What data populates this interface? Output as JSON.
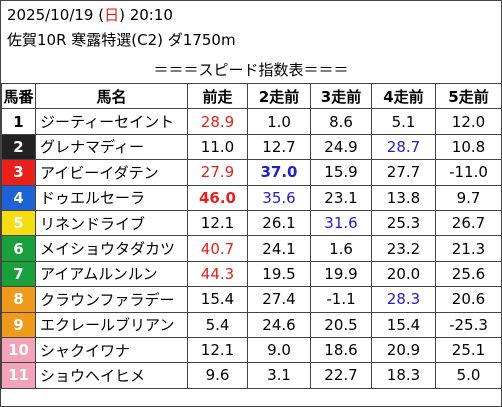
{
  "header": {
    "date_prefix": "2025/10/19 (",
    "weekday": "日",
    "date_suffix": ") 20:10",
    "race": "佐賀10R 寒露特選(C2) ダ1750m"
  },
  "subtitle": "＝＝＝スピード指数表＝＝＝",
  "columns": [
    "馬番",
    "馬名",
    "前走",
    "2走前",
    "3走前",
    "4走前",
    "5走前"
  ],
  "gate_colors": {
    "1": {
      "bg": "#ffffff",
      "fg": "#000000"
    },
    "2": {
      "bg": "#222222",
      "fg": "#ffffff"
    },
    "3": {
      "bg": "#e8211d",
      "fg": "#ffffff"
    },
    "4": {
      "bg": "#1e63d6",
      "fg": "#ffffff"
    },
    "5": {
      "bg": "#f5dd12",
      "fg": "#ffffff"
    },
    "6": {
      "bg": "#19a03a",
      "fg": "#ffffff"
    },
    "7": {
      "bg": "#f09a1b",
      "fg": "#ffffff"
    },
    "8": {
      "bg": "#f3a3b8",
      "fg": "#ffffff"
    }
  },
  "rows": [
    {
      "no": "1",
      "gate": "1",
      "name": "ジーティーセイント",
      "vals": [
        "28.9",
        "1.0",
        "8.6",
        "5.1",
        "12.0"
      ],
      "styles": [
        "red",
        "",
        "",
        "",
        ""
      ]
    },
    {
      "no": "2",
      "gate": "2",
      "name": "グレナマディー",
      "vals": [
        "11.0",
        "12.7",
        "24.9",
        "28.7",
        "10.8"
      ],
      "styles": [
        "",
        "",
        "",
        "blue",
        ""
      ]
    },
    {
      "no": "3",
      "gate": "3",
      "name": "アイビーイダテン",
      "vals": [
        "27.9",
        "37.0",
        "15.9",
        "27.7",
        "-11.0"
      ],
      "styles": [
        "red",
        "blue bold",
        "",
        "",
        ""
      ]
    },
    {
      "no": "4",
      "gate": "4",
      "name": "ドゥエルセーラ",
      "vals": [
        "46.0",
        "35.6",
        "23.1",
        "13.8",
        "9.7"
      ],
      "styles": [
        "red bold",
        "blue",
        "",
        "",
        ""
      ]
    },
    {
      "no": "5",
      "gate": "5",
      "name": "リネンドライブ",
      "vals": [
        "12.1",
        "26.1",
        "31.6",
        "25.3",
        "26.7"
      ],
      "styles": [
        "",
        "",
        "blue",
        "",
        ""
      ]
    },
    {
      "no": "6",
      "gate": "6",
      "name": "メイショウタダカツ",
      "vals": [
        "40.7",
        "24.1",
        "1.6",
        "23.2",
        "21.3"
      ],
      "styles": [
        "red",
        "",
        "",
        "",
        ""
      ]
    },
    {
      "no": "7",
      "gate": "6",
      "name": "アイアムルンルン",
      "vals": [
        "44.3",
        "19.5",
        "19.9",
        "20.0",
        "25.6"
      ],
      "styles": [
        "red",
        "",
        "",
        "",
        ""
      ]
    },
    {
      "no": "8",
      "gate": "7",
      "name": "クラウンファラデー",
      "vals": [
        "15.4",
        "27.4",
        "-1.1",
        "28.3",
        "20.6"
      ],
      "styles": [
        "",
        "",
        "",
        "blue",
        ""
      ]
    },
    {
      "no": "9",
      "gate": "7",
      "name": "エクレールブリアン",
      "vals": [
        "5.4",
        "24.6",
        "20.5",
        "15.4",
        "-25.3"
      ],
      "styles": [
        "",
        "",
        "",
        "",
        ""
      ]
    },
    {
      "no": "10",
      "gate": "8",
      "name": "シャクイワナ",
      "vals": [
        "12.1",
        "9.0",
        "18.6",
        "20.9",
        "25.1"
      ],
      "styles": [
        "",
        "",
        "",
        "",
        ""
      ]
    },
    {
      "no": "11",
      "gate": "8",
      "name": "ショウヘイヒメ",
      "vals": [
        "9.6",
        "3.1",
        "22.7",
        "18.3",
        "5.0"
      ],
      "styles": [
        "",
        "",
        "",
        "",
        ""
      ]
    }
  ]
}
